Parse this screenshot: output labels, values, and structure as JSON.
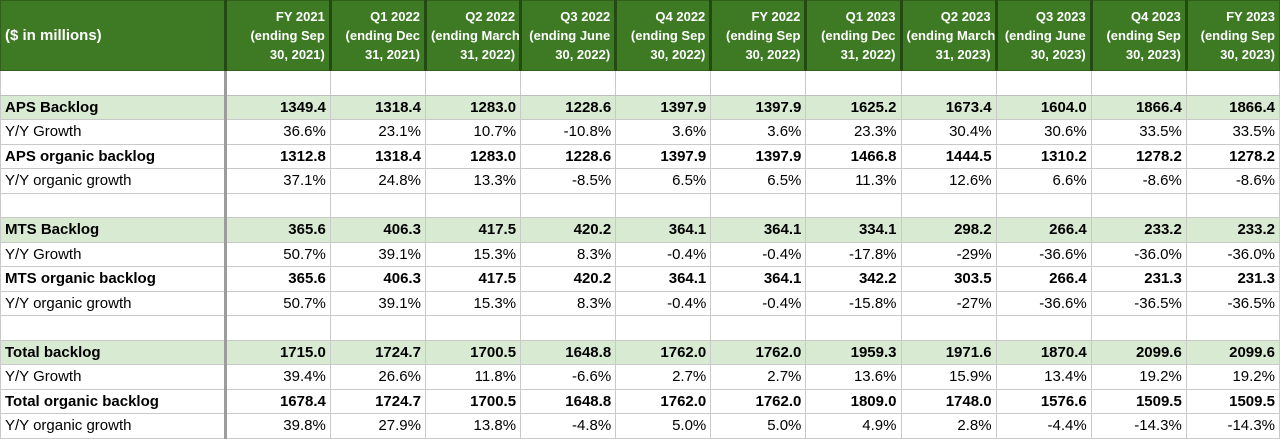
{
  "table": {
    "header_label": "($ in millions)",
    "columns": [
      {
        "period": "FY 2021",
        "ending": [
          "(ending Sep",
          "30, 2021)"
        ]
      },
      {
        "period": "Q1 2022",
        "ending": [
          "(ending Dec",
          "31, 2021)"
        ]
      },
      {
        "period": "Q2 2022",
        "ending": [
          "(ending March",
          "31, 2022)"
        ]
      },
      {
        "period": "Q3 2022",
        "ending": [
          "(ending June",
          "30, 2022)"
        ]
      },
      {
        "period": "Q4 2022",
        "ending": [
          "(ending Sep",
          "30, 2022)"
        ]
      },
      {
        "period": "FY 2022",
        "ending": [
          "(ending Sep",
          "30, 2022)"
        ]
      },
      {
        "period": "Q1 2023",
        "ending": [
          "(ending Dec",
          "31, 2022)"
        ]
      },
      {
        "period": "Q2 2023",
        "ending": [
          "(ending March",
          "31, 2023)"
        ]
      },
      {
        "period": "Q3 2023",
        "ending": [
          "(ending June",
          "30, 2023)"
        ]
      },
      {
        "period": "Q4 2023",
        "ending": [
          "(ending Sep",
          "30, 2023)"
        ]
      },
      {
        "period": "FY 2023",
        "ending": [
          "(ending Sep",
          "30, 2023)"
        ]
      }
    ],
    "rows": [
      {
        "label": "APS Backlog",
        "values": [
          "1349.4",
          "1318.4",
          "1283.0",
          "1228.6",
          "1397.9",
          "1397.9",
          "1625.2",
          "1673.4",
          "1604.0",
          "1866.4",
          "1866.4"
        ]
      },
      {
        "label": "Y/Y Growth",
        "values": [
          "36.6%",
          "23.1%",
          "10.7%",
          "-10.8%",
          "3.6%",
          "3.6%",
          "23.3%",
          "30.4%",
          "30.6%",
          "33.5%",
          "33.5%"
        ]
      },
      {
        "label": "APS organic backlog",
        "values": [
          "1312.8",
          "1318.4",
          "1283.0",
          "1228.6",
          "1397.9",
          "1397.9",
          "1466.8",
          "1444.5",
          "1310.2",
          "1278.2",
          "1278.2"
        ]
      },
      {
        "label": "Y/Y organic growth",
        "values": [
          "37.1%",
          "24.8%",
          "13.3%",
          "-8.5%",
          "6.5%",
          "6.5%",
          "11.3%",
          "12.6%",
          "6.6%",
          "-8.6%",
          "-8.6%"
        ]
      },
      {
        "label": "",
        "values": [
          "",
          "",
          "",
          "",
          "",
          "",
          "",
          "",
          "",
          "",
          ""
        ]
      },
      {
        "label": "MTS Backlog",
        "values": [
          "365.6",
          "406.3",
          "417.5",
          "420.2",
          "364.1",
          "364.1",
          "334.1",
          "298.2",
          "266.4",
          "233.2",
          "233.2"
        ]
      },
      {
        "label": "Y/Y Growth",
        "values": [
          "50.7%",
          "39.1%",
          "15.3%",
          "8.3%",
          "-0.4%",
          "-0.4%",
          "-17.8%",
          "-29%",
          "-36.6%",
          "-36.0%",
          "-36.0%"
        ]
      },
      {
        "label": "MTS organic backlog",
        "values": [
          "365.6",
          "406.3",
          "417.5",
          "420.2",
          "364.1",
          "364.1",
          "342.2",
          "303.5",
          "266.4",
          "231.3",
          "231.3"
        ]
      },
      {
        "label": "Y/Y organic growth",
        "values": [
          "50.7%",
          "39.1%",
          "15.3%",
          "8.3%",
          "-0.4%",
          "-0.4%",
          "-15.8%",
          "-27%",
          "-36.6%",
          "-36.5%",
          "-36.5%"
        ]
      },
      {
        "label": "",
        "values": [
          "",
          "",
          "",
          "",
          "",
          "",
          "",
          "",
          "",
          "",
          ""
        ]
      },
      {
        "label": "Total backlog",
        "values": [
          "1715.0",
          "1724.7",
          "1700.5",
          "1648.8",
          "1762.0",
          "1762.0",
          "1959.3",
          "1971.6",
          "1870.4",
          "2099.6",
          "2099.6"
        ]
      },
      {
        "label": "Y/Y Growth",
        "values": [
          "39.4%",
          "26.6%",
          "11.8%",
          "-6.6%",
          "2.7%",
          "2.7%",
          "13.6%",
          "15.9%",
          "13.4%",
          "19.2%",
          "19.2%"
        ]
      },
      {
        "label": "Total organic backlog",
        "values": [
          "1678.4",
          "1724.7",
          "1700.5",
          "1648.8",
          "1762.0",
          "1762.0",
          "1809.0",
          "1748.0",
          "1576.6",
          "1509.5",
          "1509.5"
        ]
      },
      {
        "label": "Y/Y organic growth",
        "values": [
          "39.8%",
          "27.9%",
          "13.8%",
          "-4.8%",
          "5.0%",
          "5.0%",
          "4.9%",
          "2.8%",
          "-4.4%",
          "-14.3%",
          "-14.3%"
        ]
      }
    ]
  },
  "colors": {
    "header_bg": "#3d7a23",
    "header_text": "#ffffff",
    "highlight_row_bg": "#d9ead3",
    "grid_line": "#c9c9c9"
  }
}
